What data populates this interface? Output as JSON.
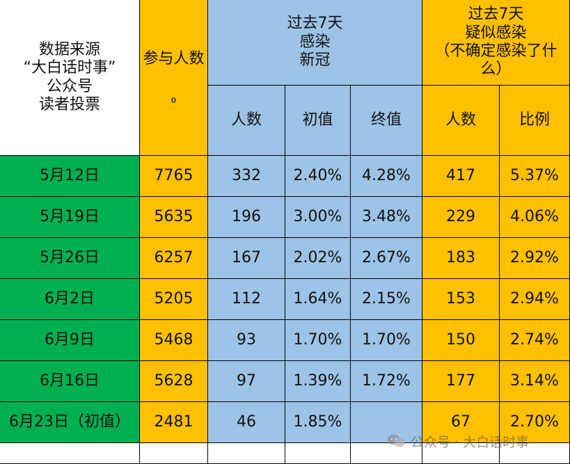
{
  "header": {
    "source": "数据来源\n“大白话时事”\n公众号\n读者投票",
    "participants": "参与人数",
    "participants_mark": "0",
    "infected_group": "过去7天\n感染\n新冠",
    "suspected_group": "过去7天\n疑似感染\n（不确定感染了什\n么）",
    "infected_cols": [
      "人数",
      "初值",
      "终值"
    ],
    "suspected_cols": [
      "人数",
      "比例"
    ]
  },
  "rows": [
    {
      "date": "5月12日",
      "participants": "7765",
      "infected": "332",
      "initial": "2.40%",
      "final": "4.28%",
      "suspected": "417",
      "ratio": "5.37%"
    },
    {
      "date": "5月19日",
      "participants": "5635",
      "infected": "196",
      "initial": "3.00%",
      "final": "3.48%",
      "suspected": "229",
      "ratio": "4.06%"
    },
    {
      "date": "5月26日",
      "participants": "6257",
      "infected": "167",
      "initial": "2.02%",
      "final": "2.67%",
      "suspected": "183",
      "ratio": "2.92%"
    },
    {
      "date": "6月2日",
      "participants": "5205",
      "infected": "112",
      "initial": "1.64%",
      "final": "2.15%",
      "suspected": "153",
      "ratio": "2.94%"
    },
    {
      "date": "6月9日",
      "participants": "5468",
      "infected": "93",
      "initial": "1.70%",
      "final": "1.70%",
      "suspected": "150",
      "ratio": "2.74%"
    },
    {
      "date": "6月16日",
      "participants": "5628",
      "infected": "97",
      "initial": "1.39%",
      "final": "1.72%",
      "suspected": "177",
      "ratio": "3.14%"
    },
    {
      "date": "6月23日（初值）",
      "participants": "2481",
      "infected": "46",
      "initial": "1.85%",
      "final": "",
      "suspected": "67",
      "ratio": "2.70%"
    }
  ],
  "watermark": {
    "text": "公众号 · 大白话时事",
    "icon": "wechat-icon"
  },
  "colors": {
    "orange": "#ffc000",
    "blue": "#9dc3e6",
    "green": "#00b050"
  }
}
